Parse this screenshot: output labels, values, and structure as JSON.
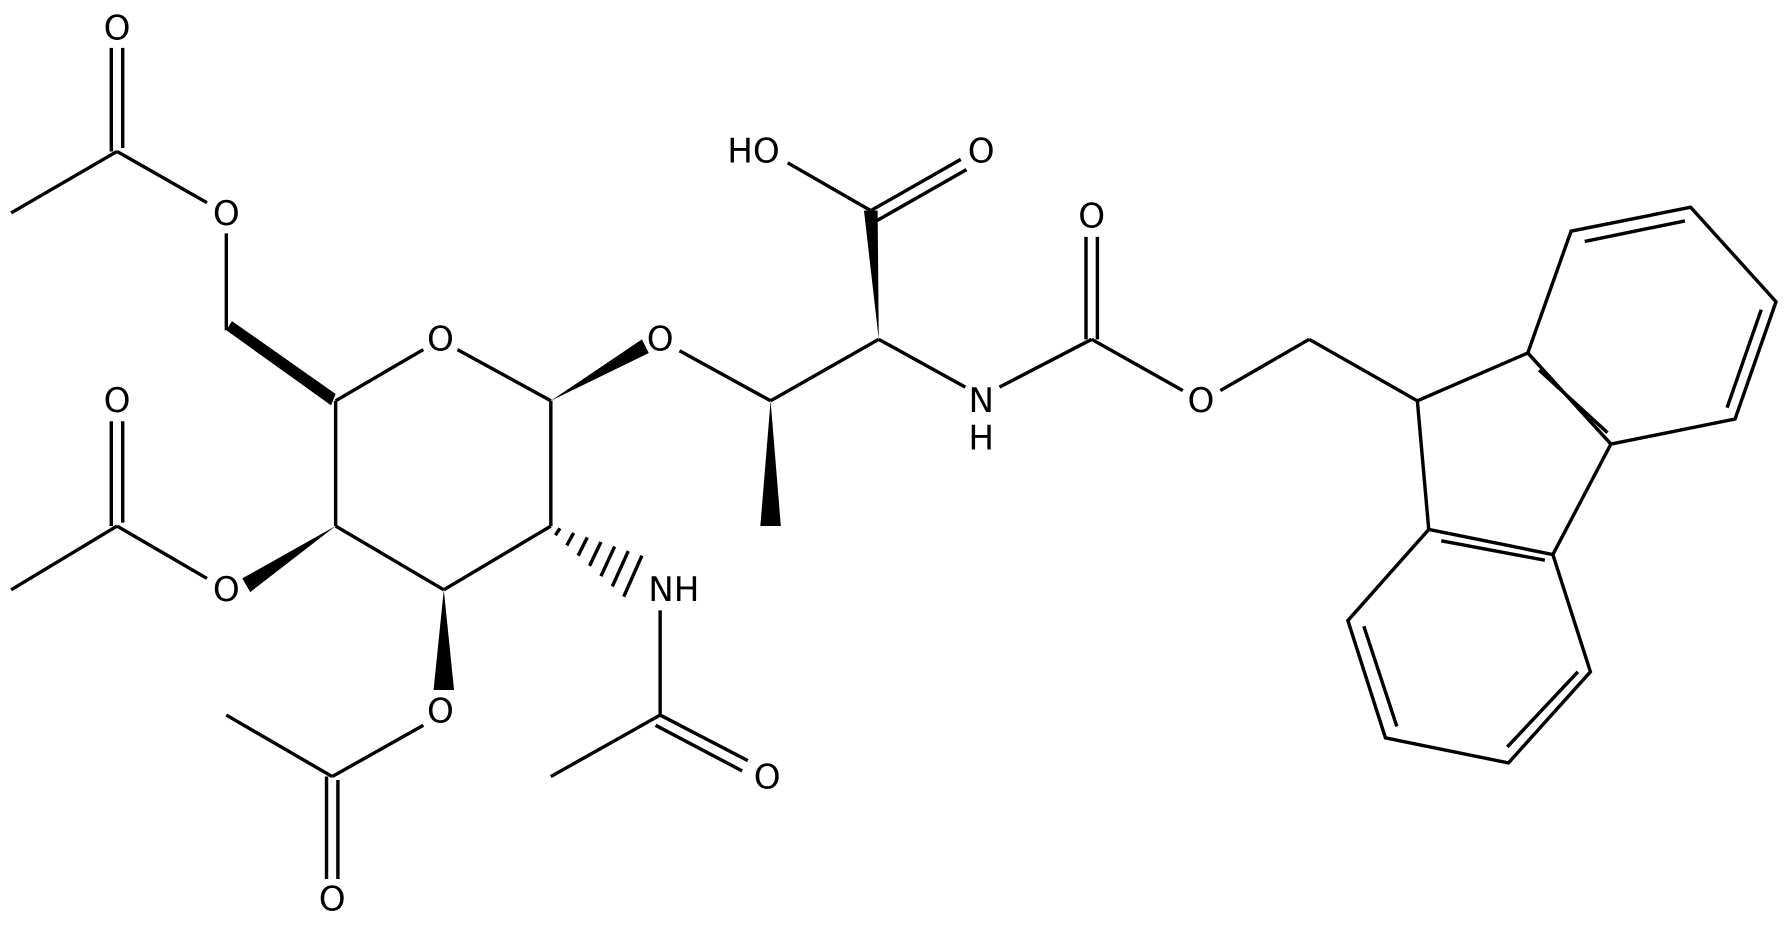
{
  "atoms": [
    {
      "label": "O"
    },
    {
      "label": "O"
    },
    {
      "label": "O"
    },
    {
      "label": "O"
    },
    {
      "label": "HO"
    },
    {
      "label": "O"
    },
    {
      "label": "O"
    },
    {
      "label": "N"
    },
    {
      "label": "H"
    },
    {
      "label": "O"
    },
    {
      "label": "O"
    },
    {
      "label": "O"
    },
    {
      "label": "NH"
    },
    {
      "label": "O"
    },
    {
      "label": "O"
    },
    {
      "label": "O"
    }
  ]
}
